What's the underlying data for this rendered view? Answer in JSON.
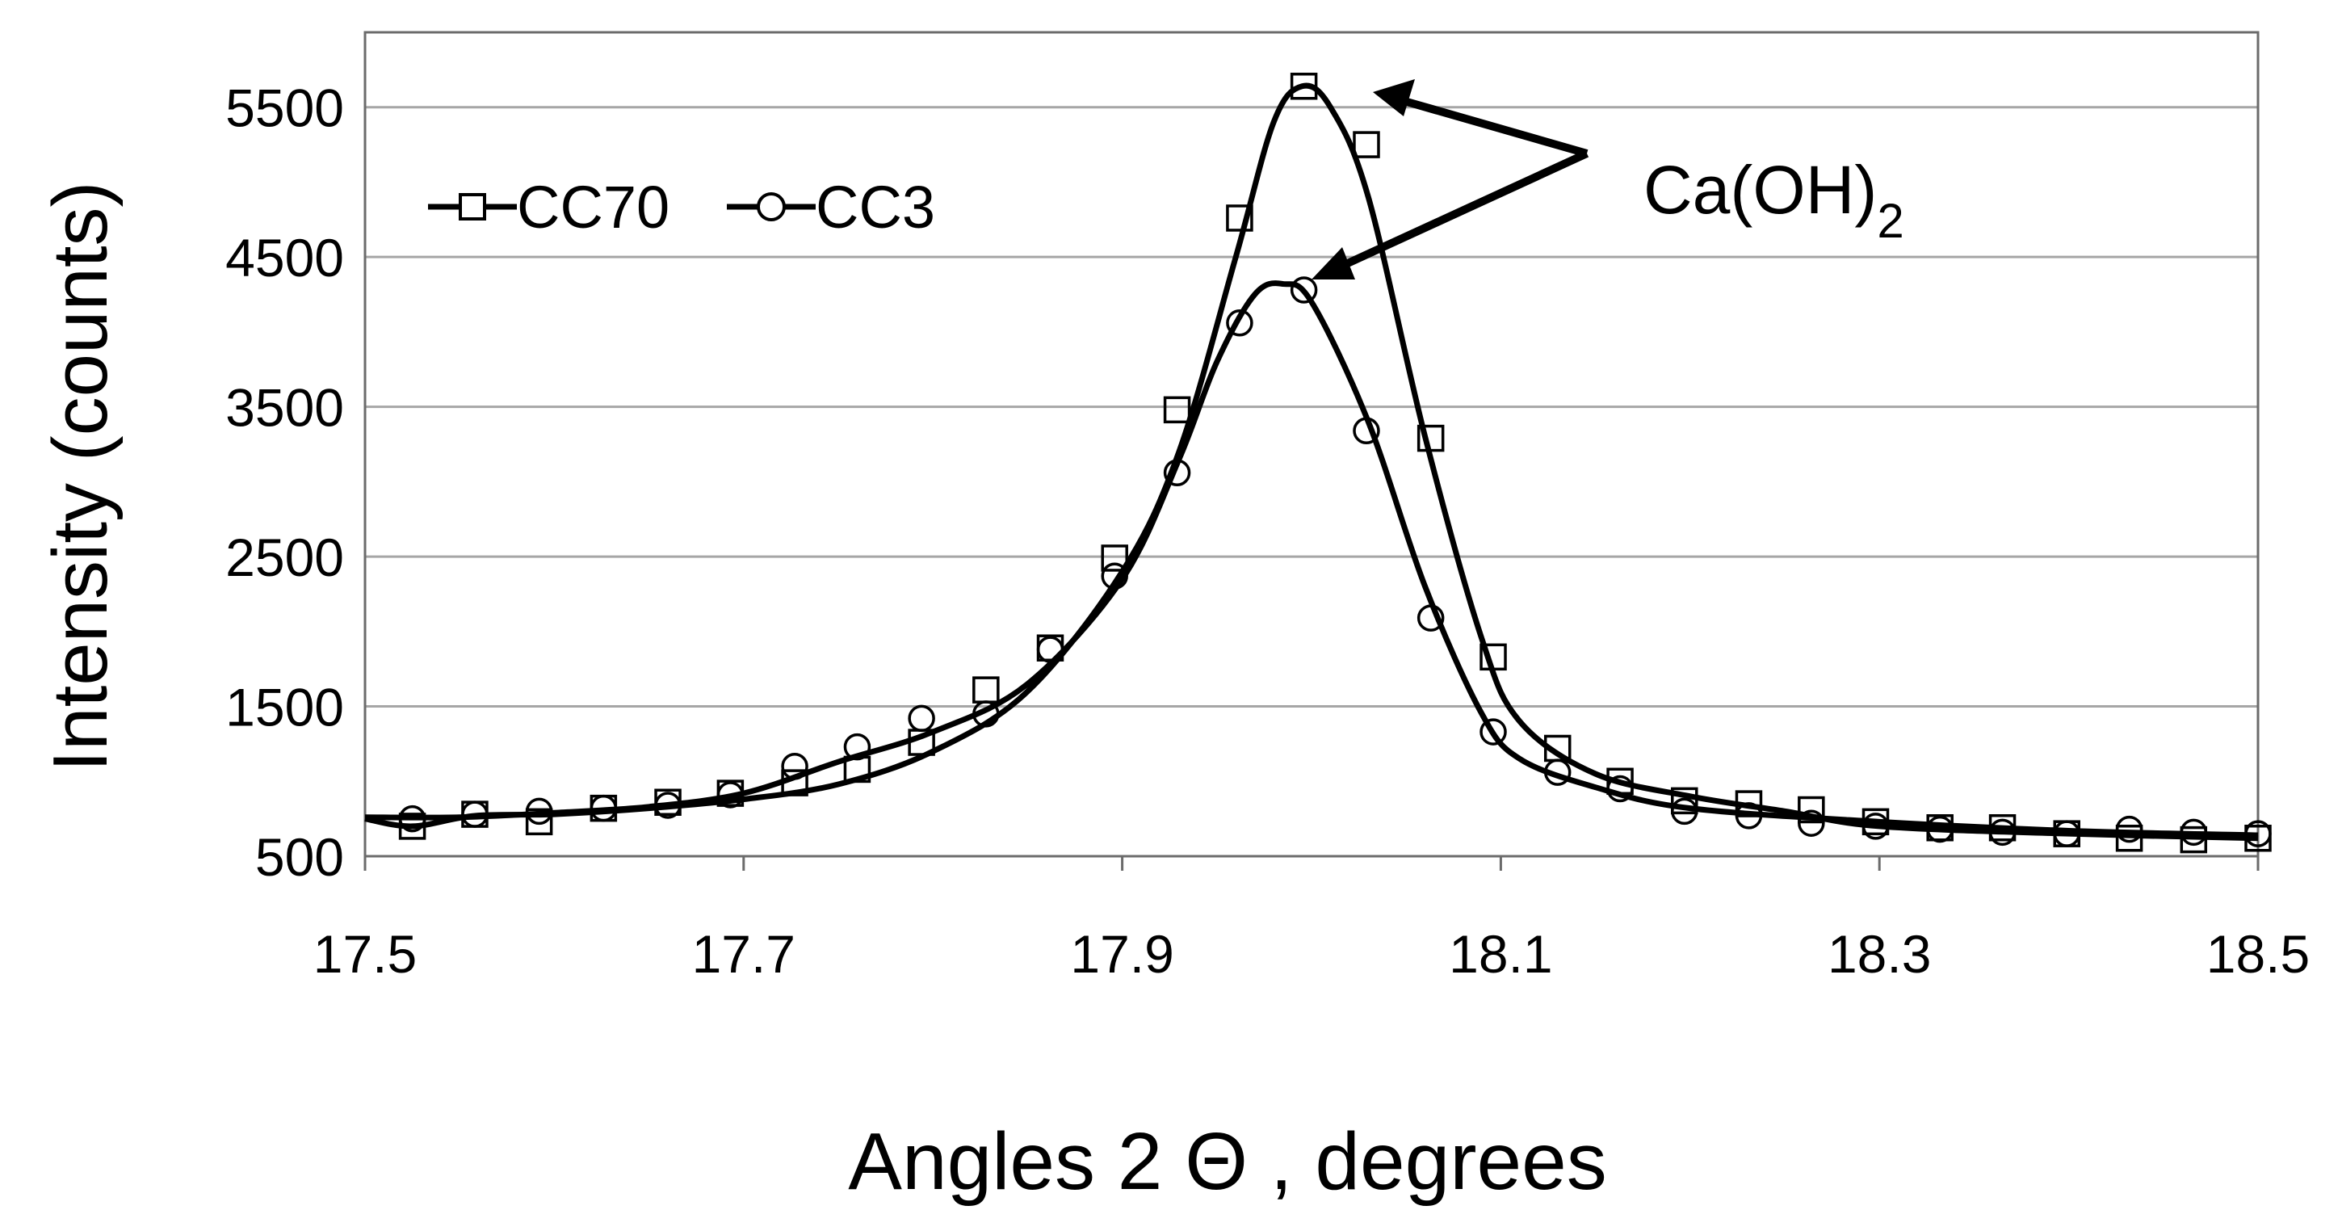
{
  "chart_data": {
    "type": "line",
    "title": "",
    "xlabel": "Angles 2 Θ , degrees",
    "ylabel": "Intensity (counts)",
    "xlim": [
      17.5,
      18.5
    ],
    "ylim": [
      500,
      6000
    ],
    "xticks": [
      "17.5",
      "17.7",
      "17.9",
      "18.1",
      "18.3",
      "18.5"
    ],
    "yticks": [
      "500",
      "1500",
      "2500",
      "3500",
      "4500",
      "5500"
    ],
    "grid": "horizontal",
    "legend_position": "top-left",
    "annotation": {
      "text_main": "Ca(OH)",
      "text_sub": "2"
    },
    "series": [
      {
        "name": "CC70",
        "marker": "square",
        "x": [
          17.525,
          17.558,
          17.592,
          17.626,
          17.66,
          17.693,
          17.727,
          17.76,
          17.794,
          17.828,
          17.862,
          17.896,
          17.929,
          17.962,
          17.996,
          18.029,
          18.063,
          18.096,
          18.13,
          18.163,
          18.197,
          18.231,
          18.264,
          18.298,
          18.332,
          18.365,
          18.399,
          18.432,
          18.466,
          18.5
        ],
        "values": [
          700,
          780,
          730,
          820,
          860,
          920,
          990,
          1080,
          1260,
          1610,
          1890,
          2490,
          3480,
          4760,
          5640,
          5250,
          3290,
          1830,
          1220,
          1000,
          870,
          850,
          810,
          730,
          690,
          690,
          650,
          620,
          610,
          620
        ],
        "curve": [
          [
            17.5,
            750
          ],
          [
            17.525,
            700
          ],
          [
            17.558,
            770
          ],
          [
            17.6,
            780
          ],
          [
            17.65,
            820
          ],
          [
            17.7,
            880
          ],
          [
            17.75,
            980
          ],
          [
            17.8,
            1200
          ],
          [
            17.85,
            1600
          ],
          [
            17.9,
            2400
          ],
          [
            17.93,
            3200
          ],
          [
            17.96,
            4500
          ],
          [
            17.98,
            5400
          ],
          [
            17.995,
            5640
          ],
          [
            18.01,
            5500
          ],
          [
            18.03,
            4900
          ],
          [
            18.06,
            3300
          ],
          [
            18.09,
            1950
          ],
          [
            18.11,
            1400
          ],
          [
            18.15,
            1050
          ],
          [
            18.2,
            900
          ],
          [
            18.25,
            800
          ],
          [
            18.3,
            700
          ],
          [
            18.4,
            650
          ],
          [
            18.5,
            620
          ]
        ]
      },
      {
        "name": "CC3",
        "marker": "circle",
        "x": [
          17.525,
          17.558,
          17.592,
          17.626,
          17.66,
          17.693,
          17.727,
          17.76,
          17.794,
          17.828,
          17.862,
          17.896,
          17.929,
          17.962,
          17.996,
          18.029,
          18.063,
          18.096,
          18.13,
          18.163,
          18.197,
          18.231,
          18.264,
          18.298,
          18.332,
          18.365,
          18.399,
          18.432,
          18.466,
          18.5
        ],
        "values": [
          750,
          780,
          800,
          820,
          840,
          910,
          1100,
          1230,
          1420,
          1450,
          1880,
          2370,
          3060,
          4060,
          4280,
          3340,
          2090,
          1330,
          1060,
          950,
          800,
          770,
          720,
          700,
          680,
          660,
          650,
          680,
          660,
          650
        ],
        "curve": [
          [
            17.5,
            760
          ],
          [
            17.55,
            760
          ],
          [
            17.6,
            790
          ],
          [
            17.65,
            830
          ],
          [
            17.7,
            920
          ],
          [
            17.75,
            1130
          ],
          [
            17.8,
            1330
          ],
          [
            17.85,
            1650
          ],
          [
            17.9,
            2350
          ],
          [
            17.93,
            3150
          ],
          [
            17.95,
            3800
          ],
          [
            17.97,
            4250
          ],
          [
            17.985,
            4320
          ],
          [
            18.0,
            4200
          ],
          [
            18.03,
            3400
          ],
          [
            18.06,
            2300
          ],
          [
            18.09,
            1450
          ],
          [
            18.11,
            1150
          ],
          [
            18.15,
            960
          ],
          [
            18.2,
            820
          ],
          [
            18.3,
            730
          ],
          [
            18.4,
            670
          ],
          [
            18.5,
            640
          ]
        ]
      }
    ]
  }
}
